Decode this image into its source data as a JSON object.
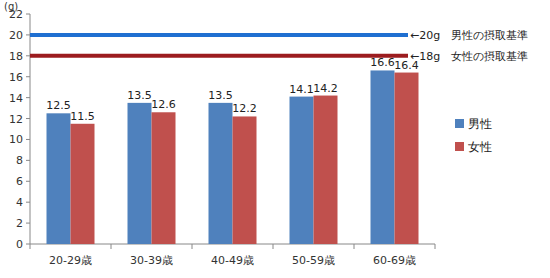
{
  "chart_data": {
    "type": "bar",
    "y_label": "(g)",
    "categories": [
      "20-29歳",
      "30-39歳",
      "40-49歳",
      "50-59歳",
      "60-69歳"
    ],
    "series": [
      {
        "name": "男性",
        "color": "#4f81bd",
        "values": [
          12.5,
          13.5,
          13.5,
          14.1,
          16.6
        ]
      },
      {
        "name": "女性",
        "color": "#c0504d",
        "values": [
          11.5,
          12.6,
          12.2,
          14.2,
          16.4
        ]
      }
    ],
    "annotations": [
      {
        "y": 20,
        "text": "←20g　男性の摂取基準",
        "color": "#1f6fd1"
      },
      {
        "y": 18,
        "text": "←18g　女性の摂取基準",
        "color": "#9c1c1f"
      }
    ],
    "ylim": [
      0,
      22
    ],
    "yticks": [
      0,
      2,
      4,
      6,
      8,
      10,
      12,
      14,
      16,
      18,
      20,
      22
    ],
    "grid": false,
    "data_labels": true,
    "legend": "right"
  }
}
